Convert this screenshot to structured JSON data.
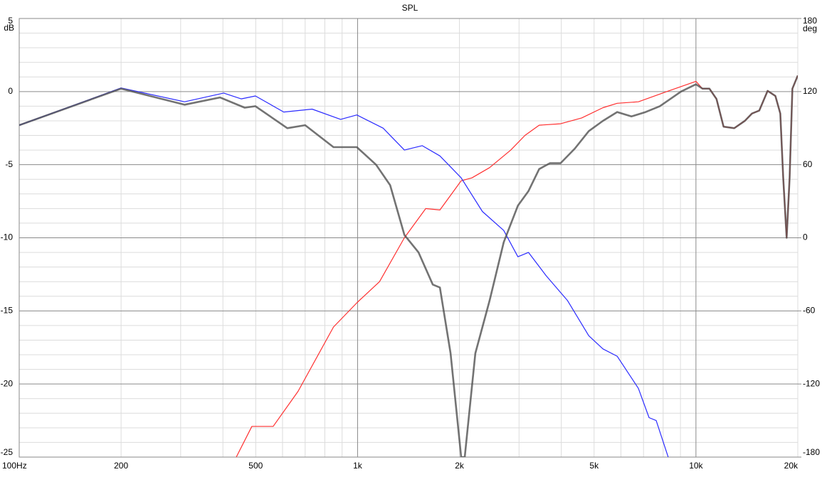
{
  "chart_data": {
    "type": "line",
    "title": "SPL",
    "y_unit": "dB",
    "y2_unit": "deg",
    "xscale": "log",
    "xlim": [
      100,
      20000
    ],
    "xticks": [
      {
        "value": 100,
        "label": "100Hz"
      },
      200,
      500,
      {
        "value": 1000,
        "label": "1k"
      },
      {
        "value": 2000,
        "label": "2k"
      },
      {
        "value": 5000,
        "label": "5k"
      },
      {
        "value": 10000,
        "label": "10k"
      },
      {
        "value": 20000,
        "label": "20k"
      }
    ],
    "minor_xticks": [
      300,
      400,
      600,
      700,
      800,
      900,
      3000,
      4000,
      6000,
      7000,
      8000,
      9000
    ],
    "ylim": [
      -25,
      5
    ],
    "yticks": [
      5,
      0,
      -5,
      -10,
      -15,
      -20,
      -25
    ],
    "minor_yticks": [
      4,
      3,
      2,
      1,
      -1,
      -2,
      -3,
      -4,
      -6,
      -7,
      -8,
      -9,
      -11,
      -12,
      -13,
      -14,
      -16,
      -17,
      -18,
      -19,
      -21,
      -22,
      -23,
      -24
    ],
    "y2lim": [
      -180,
      180
    ],
    "y2ticks": [
      180,
      120,
      60,
      0,
      -60,
      -120,
      -180
    ],
    "grid": true,
    "series": [
      {
        "color": "#ff3030",
        "x": [
          438,
          487,
          563,
          667,
          849,
          1000,
          1161,
          1375,
          1590,
          1751,
          2024,
          2177,
          2455,
          2837,
          3124,
          3441,
          3980,
          4595,
          5310,
          5850,
          6760,
          8200,
          10000,
          10450,
          10960,
          11500,
          12070,
          12980,
          13950,
          14640,
          15380,
          16290,
          17170,
          17750,
          18110,
          18540,
          18920,
          19280,
          20000
        ],
        "values": [
          -25,
          -22.9,
          -22.9,
          -20.5,
          -16.1,
          -14.4,
          -13,
          -10,
          -8,
          -8.1,
          -6.1,
          -5.9,
          -5.2,
          -4,
          -3,
          -2.3,
          -2.2,
          -1.8,
          -1.1,
          -0.8,
          -0.7,
          0,
          0.7,
          0.2,
          0.2,
          -0.5,
          -2.4,
          -2.5,
          -2,
          -1.5,
          -1.3,
          0.05,
          -0.3,
          -1.5,
          -5.9,
          -10,
          -5.9,
          0.2,
          1.1
        ]
      },
      {
        "color": "#2b2bff",
        "x": [
          100,
          200,
          308,
          402,
          453,
          499,
          605,
          734,
          891,
          995,
          1190,
          1375,
          1552,
          1751,
          2024,
          2338,
          2703,
          2977,
          3200,
          3610,
          4175,
          4823,
          5310,
          5850,
          6760,
          7270,
          7630,
          8280
        ],
        "values": [
          -2.3,
          0.25,
          -0.7,
          -0.1,
          -0.5,
          -0.3,
          -1.4,
          -1.2,
          -1.9,
          -1.6,
          -2.5,
          -4,
          -3.7,
          -4.4,
          -5.9,
          -8.2,
          -9.5,
          -11.3,
          -11,
          -12.6,
          -14.3,
          -16.7,
          -17.6,
          -18.1,
          -20.3,
          -22.3,
          -22.5,
          -25
        ]
      },
      {
        "color": "#505050",
        "x": [
          100,
          200,
          308,
          392,
          464,
          499,
          620,
          700,
          849,
          995,
          1134,
          1248,
          1375,
          1514,
          1668,
          1751,
          1883,
          2024,
          2073,
          2228,
          2455,
          2703,
          2977,
          3200,
          3441,
          3700,
          3980,
          4385,
          4823,
          5310,
          5850,
          6445,
          7100,
          7820,
          9036,
          10000,
          10450,
          10960,
          11500,
          12070,
          12980,
          13950,
          14640,
          15380,
          16290,
          17170,
          17750,
          18110,
          18540,
          18920,
          19280,
          20000
        ],
        "values": [
          -2.3,
          0.2,
          -0.9,
          -0.4,
          -1.1,
          -1,
          -2.5,
          -2.3,
          -3.8,
          -3.8,
          -5,
          -6.4,
          -9.8,
          -11,
          -13.2,
          -13.4,
          -17.9,
          -25,
          -25,
          -17.9,
          -14.3,
          -10.3,
          -7.8,
          -6.8,
          -5.3,
          -4.9,
          -4.9,
          -3.9,
          -2.7,
          -2,
          -1.4,
          -1.7,
          -1.4,
          -1,
          0,
          0.5,
          0.2,
          0.2,
          -0.5,
          -2.4,
          -2.5,
          -2,
          -1.5,
          -1.3,
          0.05,
          -0.3,
          -1.5,
          -5.9,
          -10,
          -5.9,
          0.2,
          1.1
        ]
      }
    ]
  }
}
